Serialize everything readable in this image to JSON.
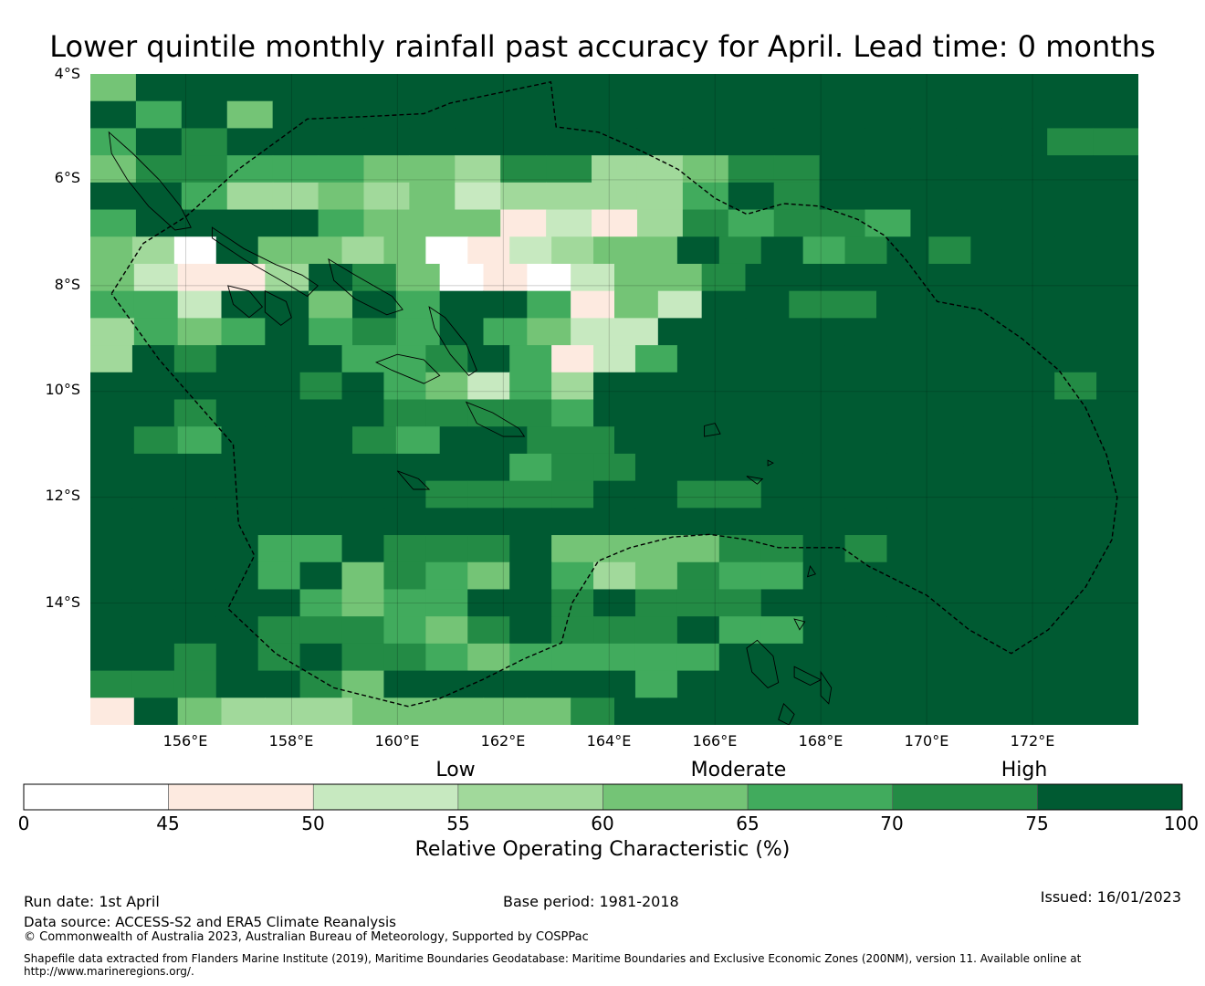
{
  "title": "Lower quintile monthly rainfall past accuracy for April. Lead time: 0 months",
  "map": {
    "lat_labels": [
      "4°S",
      "6°S",
      "8°S",
      "10°S",
      "12°S",
      "14°S"
    ],
    "lon_labels": [
      "156°E",
      "158°E",
      "160°E",
      "162°E",
      "164°E",
      "166°E",
      "168°E",
      "170°E",
      "172°E"
    ],
    "extent": {
      "lon_min": 154.2,
      "lon_max": 174.0,
      "lat_top": -4.0,
      "lat_bottom": -16.3
    },
    "grid_codes": [
      "47777777777777777777777",
      "75747777777777777777777",
      "57677777777777777777766",
      "46655544366334667777777",
      "77533434233335767777777",
      "57777544412136566577777",
      "4307443401234476756767777",
      "421137640102446777777777",
      "552774757751427766777777",
      "354575657542277777777777",
      "3767775567512577777777777",
      "7777767542537777777777767",
      "7767777666657777777777777",
      "765777657766777777777777",
      "7777777777566777777777777",
      "7777777766667766777777777",
      "7777777777777777777777777",
      "7777557666744446676777777",
      "7777574654753465577777777",
      "7777754557767666777777777",
      "7777666546766675577777777",
      "7767676654555557777777777",
      "6667764777777577777777777",
      "174333444446777777777777"
    ],
    "boundary_lon_lat": [
      [
        154.6,
        -8.15
      ],
      [
        155.2,
        -7.2
      ],
      [
        156.0,
        -6.7
      ],
      [
        157.0,
        -5.8
      ],
      [
        158.3,
        -4.85
      ],
      [
        159.5,
        -4.8
      ],
      [
        160.5,
        -4.75
      ],
      [
        161.0,
        -4.55
      ],
      [
        162.9,
        -4.15
      ],
      [
        163.0,
        -5.0
      ],
      [
        163.8,
        -5.1
      ],
      [
        164.6,
        -5.45
      ],
      [
        165.3,
        -5.8
      ],
      [
        166.0,
        -6.35
      ],
      [
        166.6,
        -6.65
      ],
      [
        167.3,
        -6.45
      ],
      [
        168.0,
        -6.5
      ],
      [
        168.7,
        -6.75
      ],
      [
        169.2,
        -7.05
      ],
      [
        169.6,
        -7.5
      ],
      [
        170.2,
        -8.3
      ],
      [
        171.0,
        -8.45
      ],
      [
        171.8,
        -9.0
      ],
      [
        172.5,
        -9.6
      ],
      [
        173.0,
        -10.3
      ],
      [
        173.4,
        -11.2
      ],
      [
        173.6,
        -12.0
      ],
      [
        173.5,
        -12.8
      ],
      [
        173.0,
        -13.7
      ],
      [
        172.3,
        -14.5
      ],
      [
        171.6,
        -14.95
      ],
      [
        170.8,
        -14.5
      ],
      [
        170.0,
        -13.85
      ],
      [
        168.9,
        -13.3
      ],
      [
        168.4,
        -12.95
      ],
      [
        167.7,
        -12.95
      ],
      [
        167.2,
        -12.95
      ],
      [
        166.6,
        -12.8
      ],
      [
        165.9,
        -12.7
      ],
      [
        165.2,
        -12.75
      ],
      [
        164.4,
        -12.95
      ],
      [
        163.8,
        -13.2
      ],
      [
        163.3,
        -14.0
      ],
      [
        163.1,
        -14.75
      ],
      [
        162.4,
        -15.05
      ],
      [
        161.6,
        -15.45
      ],
      [
        160.8,
        -15.8
      ],
      [
        160.2,
        -15.95
      ],
      [
        158.8,
        -15.6
      ],
      [
        157.7,
        -14.95
      ],
      [
        156.8,
        -14.1
      ],
      [
        157.3,
        -13.1
      ],
      [
        157.0,
        -12.5
      ],
      [
        156.9,
        -11.0
      ],
      [
        156.2,
        -10.2
      ],
      [
        155.5,
        -9.4
      ],
      [
        154.6,
        -8.15
      ]
    ],
    "islands_lon_lat": [
      [
        [
          154.55,
          -5.1
        ],
        [
          155.0,
          -5.5
        ],
        [
          155.5,
          -6.0
        ],
        [
          155.9,
          -6.5
        ],
        [
          156.1,
          -6.9
        ],
        [
          155.8,
          -6.95
        ],
        [
          155.3,
          -6.5
        ],
        [
          154.9,
          -6.0
        ],
        [
          154.6,
          -5.5
        ],
        [
          154.55,
          -5.1
        ]
      ],
      [
        [
          156.5,
          -6.9
        ],
        [
          157.1,
          -7.3
        ],
        [
          157.7,
          -7.6
        ],
        [
          158.2,
          -7.8
        ],
        [
          158.5,
          -8.0
        ],
        [
          158.3,
          -8.2
        ],
        [
          157.8,
          -7.9
        ],
        [
          157.1,
          -7.5
        ],
        [
          156.5,
          -7.1
        ],
        [
          156.5,
          -6.9
        ]
      ],
      [
        [
          158.7,
          -7.5
        ],
        [
          159.2,
          -7.8
        ],
        [
          159.9,
          -8.2
        ],
        [
          160.1,
          -8.45
        ],
        [
          159.8,
          -8.55
        ],
        [
          159.2,
          -8.25
        ],
        [
          158.8,
          -7.9
        ],
        [
          158.7,
          -7.5
        ]
      ],
      [
        [
          156.8,
          -8.0
        ],
        [
          157.2,
          -8.1
        ],
        [
          157.45,
          -8.4
        ],
        [
          157.2,
          -8.6
        ],
        [
          156.9,
          -8.35
        ],
        [
          156.8,
          -8.0
        ]
      ],
      [
        [
          157.5,
          -8.1
        ],
        [
          157.9,
          -8.3
        ],
        [
          158.0,
          -8.6
        ],
        [
          157.8,
          -8.75
        ],
        [
          157.5,
          -8.5
        ],
        [
          157.5,
          -8.1
        ]
      ],
      [
        [
          160.6,
          -8.4
        ],
        [
          160.9,
          -8.6
        ],
        [
          161.3,
          -9.1
        ],
        [
          161.5,
          -9.6
        ],
        [
          161.35,
          -9.7
        ],
        [
          161.0,
          -9.3
        ],
        [
          160.7,
          -8.8
        ],
        [
          160.6,
          -8.4
        ]
      ],
      [
        [
          160.0,
          -9.3
        ],
        [
          160.5,
          -9.4
        ],
        [
          160.8,
          -9.7
        ],
        [
          160.5,
          -9.85
        ],
        [
          159.9,
          -9.6
        ],
        [
          159.6,
          -9.45
        ],
        [
          160.0,
          -9.3
        ]
      ],
      [
        [
          161.3,
          -10.2
        ],
        [
          161.8,
          -10.4
        ],
        [
          162.3,
          -10.7
        ],
        [
          162.4,
          -10.85
        ],
        [
          162.0,
          -10.85
        ],
        [
          161.5,
          -10.6
        ],
        [
          161.3,
          -10.2
        ]
      ],
      [
        [
          160.0,
          -11.5
        ],
        [
          160.4,
          -11.65
        ],
        [
          160.6,
          -11.85
        ],
        [
          160.3,
          -11.85
        ],
        [
          160.0,
          -11.5
        ]
      ],
      [
        [
          166.0,
          -10.6
        ],
        [
          166.1,
          -10.8
        ],
        [
          165.8,
          -10.85
        ],
        [
          165.8,
          -10.65
        ],
        [
          166.0,
          -10.6
        ]
      ],
      [
        [
          166.8,
          -14.7
        ],
        [
          167.1,
          -15.0
        ],
        [
          167.2,
          -15.5
        ],
        [
          167.0,
          -15.6
        ],
        [
          166.7,
          -15.3
        ],
        [
          166.6,
          -14.85
        ],
        [
          166.8,
          -14.7
        ]
      ],
      [
        [
          167.5,
          -15.2
        ],
        [
          168.0,
          -15.45
        ],
        [
          167.8,
          -15.55
        ],
        [
          167.5,
          -15.4
        ],
        [
          167.5,
          -15.2
        ]
      ],
      [
        [
          168.0,
          -15.3
        ],
        [
          168.2,
          -15.6
        ],
        [
          168.15,
          -15.9
        ],
        [
          168.0,
          -15.75
        ],
        [
          168.0,
          -15.3
        ]
      ],
      [
        [
          167.3,
          -15.9
        ],
        [
          167.5,
          -16.1
        ],
        [
          167.4,
          -16.3
        ],
        [
          167.2,
          -16.2
        ],
        [
          167.3,
          -15.9
        ]
      ],
      [
        [
          167.5,
          -14.3
        ],
        [
          167.7,
          -14.35
        ],
        [
          167.6,
          -14.5
        ],
        [
          167.5,
          -14.3
        ]
      ],
      [
        [
          167.8,
          -13.3
        ],
        [
          167.9,
          -13.45
        ],
        [
          167.75,
          -13.5
        ],
        [
          167.8,
          -13.3
        ]
      ],
      [
        [
          166.6,
          -11.6
        ],
        [
          166.9,
          -11.65
        ],
        [
          166.8,
          -11.75
        ],
        [
          166.6,
          -11.6
        ]
      ],
      [
        [
          167.0,
          -11.3
        ],
        [
          167.1,
          -11.35
        ],
        [
          167.0,
          -11.4
        ],
        [
          167.0,
          -11.3
        ]
      ]
    ]
  },
  "colorbar": {
    "categories": [
      "Low",
      "Moderate",
      "High"
    ],
    "ticks": [
      "0",
      "45",
      "50",
      "55",
      "60",
      "65",
      "70",
      "75",
      "100"
    ],
    "colors": [
      "#ffffff",
      "#fdeae0",
      "#c7e9c0",
      "#a1d99b",
      "#74c476",
      "#41ab5d",
      "#238b45",
      "#005a32"
    ],
    "label": "Relative Operating Characteristic (%)"
  },
  "footer": {
    "run_date": "Run date: 1st April",
    "base_period": "Base period: 1981-2018",
    "issued": "Issued: 16/01/2023",
    "data_source": "Data source: ACCESS-S2 and ERA5 Climate Reanalysis",
    "copyright": "© Commonwealth of Australia 2023, Australian Bureau of Meteorology, Supported by COSPPac",
    "shapefile": "Shapefile data extracted from Flanders Marine Institute (2019), Maritime Boundaries Geodatabase: Maritime Boundaries and Exclusive Economic Zones (200NM), version 11. Available online at http://www.marineregions.org/."
  }
}
